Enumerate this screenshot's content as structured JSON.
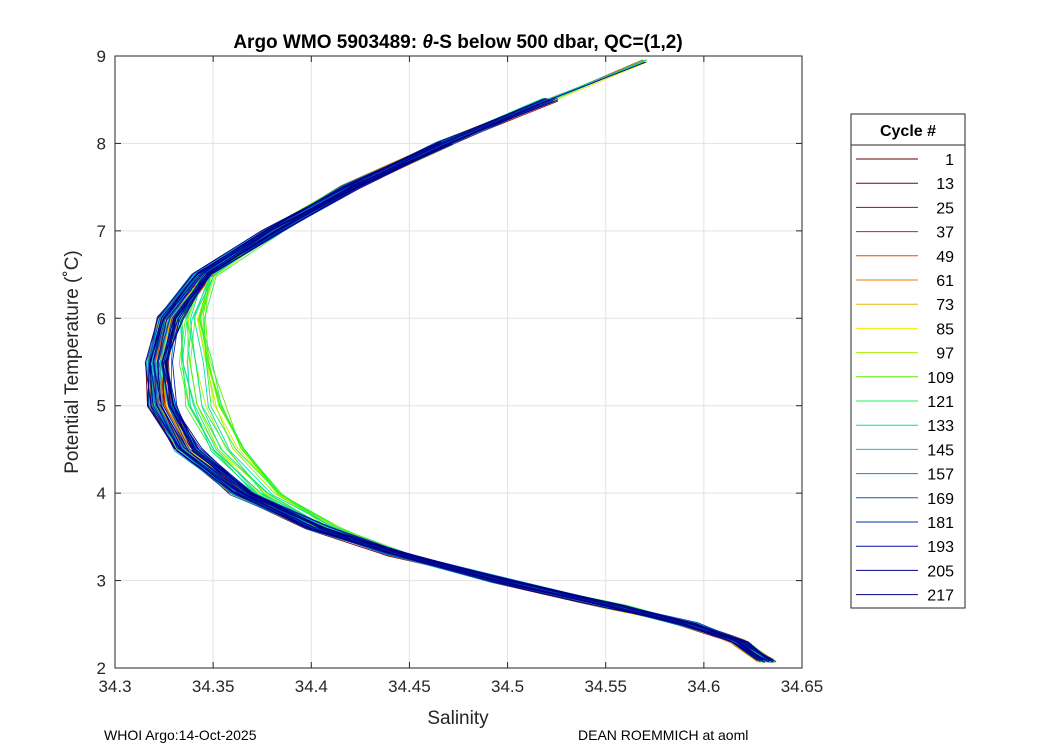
{
  "chart_data": {
    "type": "line",
    "title_prefix": "Argo WMO 5903489: ",
    "title_symbol": "θ",
    "title_suffix": "-S below 500 dbar,  QC=(1,2)",
    "xlabel": "Salinity",
    "ylabel": "Potential Temperature (˚C)",
    "xlim": [
      34.3,
      34.65
    ],
    "ylim": [
      2,
      9
    ],
    "x_ticks": [
      "34.3",
      "34.35",
      "34.4",
      "34.45",
      "34.5",
      "34.55",
      "34.6",
      "34.65"
    ],
    "y_ticks": [
      "2",
      "3",
      "4",
      "5",
      "6",
      "7",
      "8",
      "9"
    ],
    "grid": true,
    "legend_title": "Cycle #",
    "legend_position": "right",
    "legend_entries": [
      {
        "label": "1",
        "color": "#5a0000"
      },
      {
        "label": "13",
        "color": "#800000"
      },
      {
        "label": "25",
        "color": "#a80c00"
      },
      {
        "label": "37",
        "color": "#cc2a00"
      },
      {
        "label": "49",
        "color": "#e05000"
      },
      {
        "label": "61",
        "color": "#eb7d00"
      },
      {
        "label": "73",
        "color": "#f0b400"
      },
      {
        "label": "85",
        "color": "#f0f000"
      },
      {
        "label": "97",
        "color": "#a8f000"
      },
      {
        "label": "109",
        "color": "#55f000"
      },
      {
        "label": "121",
        "color": "#20f060"
      },
      {
        "label": "133",
        "color": "#00e0b0"
      },
      {
        "label": "145",
        "color": "#00c0e0"
      },
      {
        "label": "157",
        "color": "#0090d0"
      },
      {
        "label": "169",
        "color": "#0060c0"
      },
      {
        "label": "181",
        "color": "#0030b0"
      },
      {
        "label": "193",
        "color": "#0010a0"
      },
      {
        "label": "205",
        "color": "#00008c"
      },
      {
        "label": "217",
        "color": "#000080"
      }
    ],
    "series_shape": {
      "theta": [
        2.08,
        2.3,
        2.5,
        2.7,
        3.0,
        3.3,
        3.6,
        4.0,
        4.5,
        5.0,
        5.5,
        6.0,
        6.5,
        7.0,
        7.5,
        8.0,
        8.5,
        8.95
      ],
      "salinity": [
        34.632,
        34.618,
        34.592,
        34.555,
        34.497,
        34.445,
        34.403,
        34.365,
        34.337,
        34.324,
        34.322,
        34.328,
        34.345,
        34.38,
        34.42,
        34.468,
        34.522,
        34.57
      ]
    },
    "footer_left": "WHOI Argo:14-Oct-2025",
    "footer_right": "DEAN ROEMMICH at aoml"
  }
}
